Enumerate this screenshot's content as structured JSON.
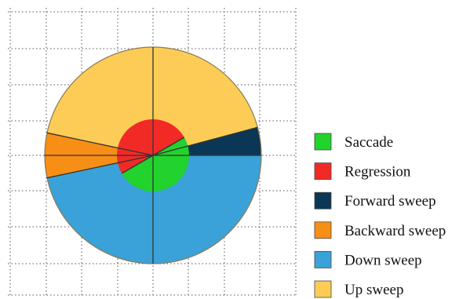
{
  "colors": {
    "background": "#ffffff",
    "grid": "#555555",
    "axis": "#333333",
    "outline": "#8a7a55"
  },
  "sectors": [
    {
      "name": "Up sweep",
      "color": "#fccc57",
      "start_deg": 15,
      "end_deg": 168
    },
    {
      "name": "Backward sweep",
      "color": "#f78e16",
      "start_deg": 168,
      "end_deg": 192
    },
    {
      "name": "Down sweep",
      "color": "#3aa2d8",
      "start_deg": 192,
      "end_deg": 360
    },
    {
      "name": "Forward sweep",
      "color": "#0a3756",
      "start_deg": 0,
      "end_deg": 15
    }
  ],
  "inner_sectors": [
    {
      "name": "Regression",
      "color": "#f22a26",
      "start_deg": 30,
      "end_deg": 210
    },
    {
      "name": "Saccade",
      "color": "#22d22d",
      "start_deg": 210,
      "end_deg": 390
    }
  ],
  "legend": [
    {
      "label": "Saccade",
      "color": "#22d22d"
    },
    {
      "label": "Regression",
      "color": "#f22a26"
    },
    {
      "label": "Forward sweep",
      "color": "#0a3756"
    },
    {
      "label": "Backward sweep",
      "color": "#f78e16"
    },
    {
      "label": "Down sweep",
      "color": "#3aa2d8"
    },
    {
      "label": "Up sweep",
      "color": "#fccc57"
    }
  ]
}
